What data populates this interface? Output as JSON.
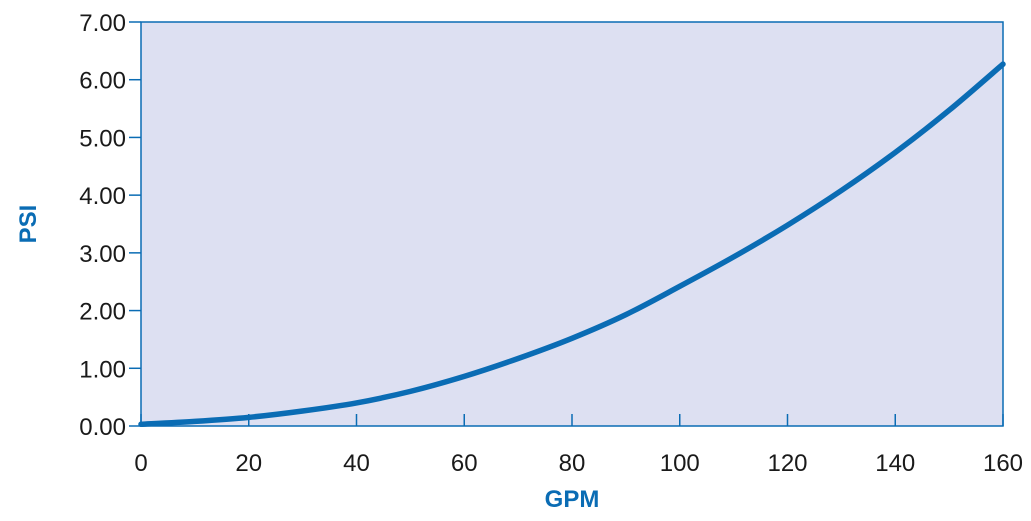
{
  "chart_data": {
    "type": "line",
    "xlabel": "GPM",
    "ylabel": "PSI",
    "xlim": [
      0,
      160
    ],
    "ylim": [
      0,
      7
    ],
    "x_ticks": [
      "0",
      "20",
      "40",
      "60",
      "80",
      "100",
      "120",
      "140",
      "160"
    ],
    "y_ticks": [
      "0.00",
      "1.00",
      "2.00",
      "3.00",
      "4.00",
      "5.00",
      "6.00",
      "7.00"
    ],
    "grid": false,
    "series": [
      {
        "x": [
          0,
          10,
          20,
          30,
          40,
          50,
          60,
          70,
          80,
          90,
          100,
          110,
          120,
          130,
          140,
          150,
          160
        ],
        "y": [
          0.03,
          0.08,
          0.15,
          0.26,
          0.4,
          0.6,
          0.86,
          1.17,
          1.52,
          1.93,
          2.42,
          2.93,
          3.48,
          4.08,
          4.74,
          5.47,
          6.27
        ]
      }
    ],
    "colors": {
      "plot_background": "#dde0f2",
      "frame": "#0a6cb4",
      "line": "#0a6cb4",
      "axis_title": "#0a6cb4",
      "tick_label": "#1a1a1a"
    }
  }
}
